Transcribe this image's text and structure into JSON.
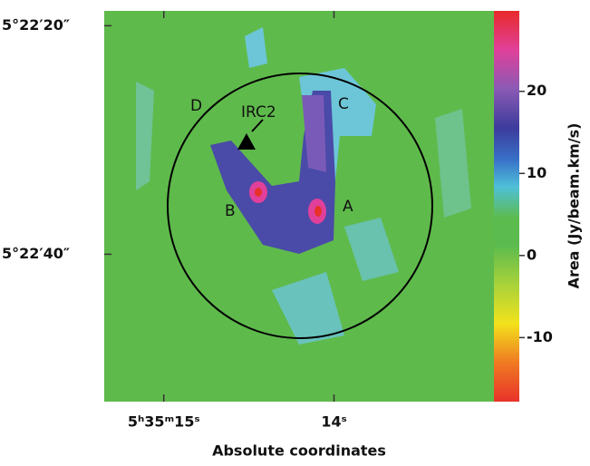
{
  "chart_data": {
    "type": "image-map",
    "xlabel": "Absolute coordinates",
    "colorbar_label": "Area (Jy/beam.km/s)",
    "xlim": [
      15.35,
      13.06
    ],
    "xticks": [
      {
        "value": 15,
        "label": "5ʰ35ᵐ15ˢ"
      },
      {
        "value": 14,
        "label": "14ˢ"
      }
    ],
    "ylim": [
      18.7,
      52.9
    ],
    "yticks": [
      {
        "value": 20,
        "label": "5°22′20″"
      },
      {
        "value": 40,
        "label": "5°22′40″"
      }
    ],
    "clim": [
      -17.8,
      29.8
    ],
    "cticks": [
      -10,
      0,
      10,
      20
    ],
    "annotations": [
      "D",
      "IRC2",
      "C",
      "B",
      "A"
    ]
  }
}
